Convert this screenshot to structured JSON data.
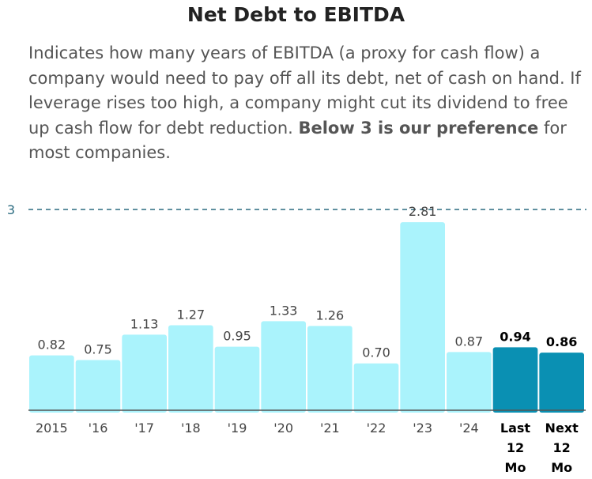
{
  "header": {
    "title": "Net Debt to EBITDA",
    "description_pre": "Indicates how many years of EBITDA (a proxy for cash flow) a company would need to pay off all its debt, net of cash on hand. If leverage rises too high, a company might cut its dividend to free up cash flow for debt reduction. ",
    "description_bold": "Below 3 is our preference",
    "description_post": " for most companies."
  },
  "chart_data": {
    "type": "bar",
    "title": "Net Debt to EBITDA",
    "categories": [
      [
        "2015"
      ],
      [
        "'16"
      ],
      [
        "'17"
      ],
      [
        "'18"
      ],
      [
        "'19"
      ],
      [
        "'20"
      ],
      [
        "'21"
      ],
      [
        "'22"
      ],
      [
        "'23"
      ],
      [
        "'24"
      ],
      [
        "Last",
        "12",
        "Mo"
      ],
      [
        "Next",
        "12",
        "Mo"
      ]
    ],
    "values": [
      0.82,
      0.75,
      1.13,
      1.27,
      0.95,
      1.33,
      1.26,
      0.7,
      2.81,
      0.87,
      0.94,
      0.86
    ],
    "value_labels": [
      "0.82",
      "0.75",
      "1.13",
      "1.27",
      "0.95",
      "1.33",
      "1.26",
      "0.70",
      "2.81",
      "0.87",
      "0.94",
      "0.86"
    ],
    "highlighted": [
      false,
      false,
      false,
      false,
      false,
      false,
      false,
      false,
      false,
      false,
      true,
      true
    ],
    "reference_line": {
      "value": 3,
      "label": "3"
    },
    "ylim": [
      0,
      3
    ],
    "colors": {
      "bar": "#aaf3fc",
      "bar_highlight": "#0a90b3",
      "reference": "#2b6b80",
      "axis": "#555555"
    }
  }
}
